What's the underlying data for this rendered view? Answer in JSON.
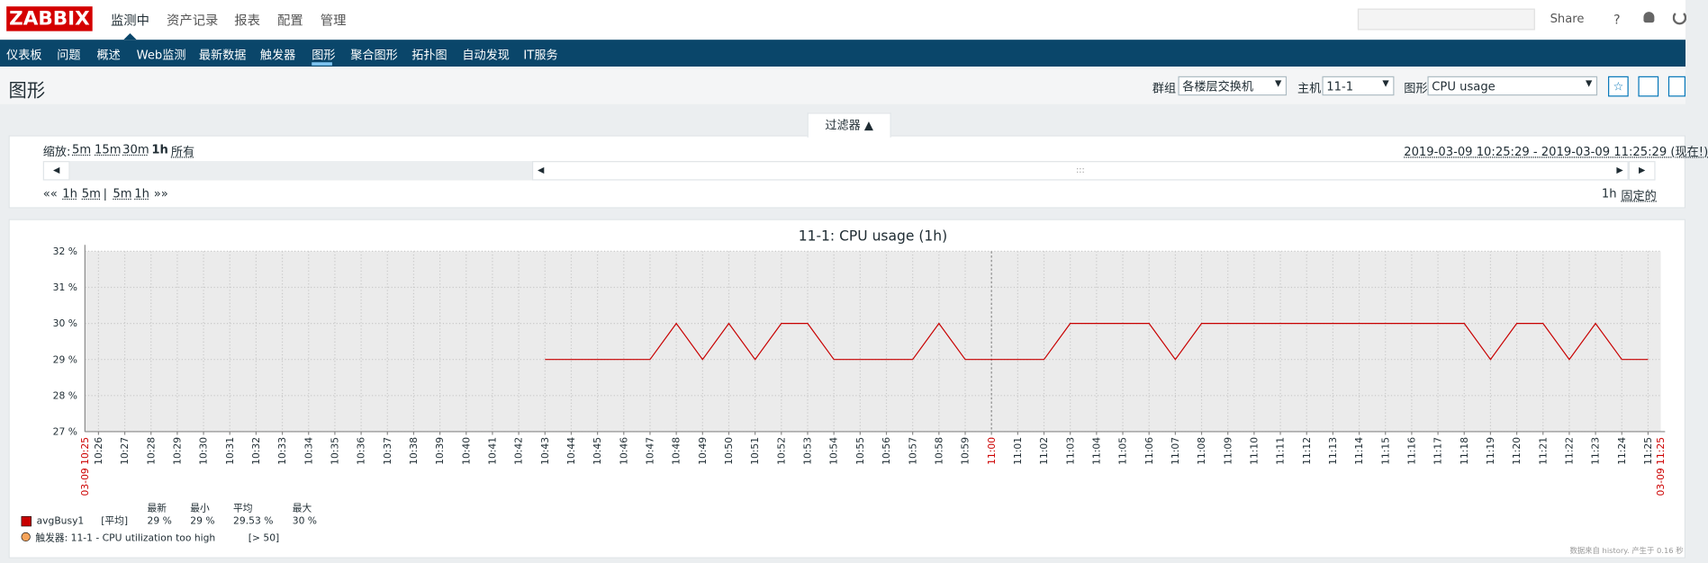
{
  "header": {
    "logo": "ZABBIX",
    "menu": [
      "监测中",
      "资产记录",
      "报表",
      "配置",
      "管理"
    ],
    "share": "Share",
    "help": "?"
  },
  "subnav": [
    "仪表板",
    "问题",
    "概述",
    "Web监测",
    "最新数据",
    "触发器",
    "图形",
    "聚合图形",
    "拓扑图",
    "自动发现",
    "IT服务"
  ],
  "page": {
    "title": "图形",
    "filters": [
      {
        "label": "群组",
        "value": "各楼层交换机"
      },
      {
        "label": "主机",
        "value": "11-1"
      },
      {
        "label": "图形",
        "value": "CPU usage"
      }
    ]
  },
  "filter": {
    "tab": "过滤器 ▲",
    "zoom_label": "缩放:",
    "zoom": [
      "5m",
      "15m",
      "30m",
      "1h",
      "所有"
    ],
    "range": "2019-03-09 10:25:29 - 2019-03-09 11:25:29 (现在!)",
    "nav": [
      "««",
      "1h",
      "5m",
      "|",
      "5m",
      "1h",
      "»»"
    ],
    "period": "1h",
    "fixed": "固定的"
  },
  "chart_data": {
    "type": "line",
    "title": "11-1: CPU usage (1h)",
    "x": [
      "10:43",
      "10:44",
      "10:45",
      "10:46",
      "10:47",
      "10:48",
      "10:49",
      "10:50",
      "10:51",
      "10:52",
      "10:53",
      "10:54",
      "10:55",
      "10:56",
      "10:57",
      "10:58",
      "10:59",
      "11:00",
      "11:01",
      "11:02",
      "11:03",
      "11:04",
      "11:05",
      "11:06",
      "11:07",
      "11:08",
      "11:09",
      "11:10",
      "11:11",
      "11:12",
      "11:13",
      "11:14",
      "11:15",
      "11:16",
      "11:17",
      "11:18",
      "11:19",
      "11:20",
      "11:21",
      "11:22",
      "11:23",
      "11:24",
      "11:25"
    ],
    "series": [
      {
        "name": "avgBusy1",
        "color": "#c80000",
        "values": [
          29,
          29,
          29,
          29,
          29,
          30,
          29,
          30,
          29,
          30,
          30,
          29,
          29,
          29,
          29,
          30,
          29,
          29,
          29,
          29,
          30,
          30,
          30,
          30,
          29,
          30,
          30,
          30,
          30,
          30,
          30,
          30,
          30,
          30,
          30,
          30,
          29,
          30,
          30,
          29,
          30,
          29,
          29
        ]
      }
    ],
    "xlim": [
      "10:25:29",
      "11:25:29"
    ],
    "xticks": [
      "10:26",
      "10:27",
      "10:28",
      "10:29",
      "10:30",
      "10:31",
      "10:32",
      "10:33",
      "10:34",
      "10:35",
      "10:36",
      "10:37",
      "10:38",
      "10:39",
      "10:40",
      "10:41",
      "10:42",
      "10:43",
      "10:44",
      "10:45",
      "10:46",
      "10:47",
      "10:48",
      "10:49",
      "10:50",
      "10:51",
      "10:52",
      "10:53",
      "10:54",
      "10:55",
      "10:56",
      "10:57",
      "10:58",
      "10:59",
      "11:00",
      "11:01",
      "11:02",
      "11:03",
      "11:04",
      "11:05",
      "11:06",
      "11:07",
      "11:08",
      "11:09",
      "11:10",
      "11:11",
      "11:12",
      "11:13",
      "11:14",
      "11:15",
      "11:16",
      "11:17",
      "11:18",
      "11:19",
      "11:20",
      "11:21",
      "11:22",
      "11:23",
      "11:24",
      "11:25"
    ],
    "x_edge_labels": [
      "03-09 10:25",
      "03-09 11:25"
    ],
    "xtick_highlight": [
      34
    ],
    "highlight_color": "#cc0000",
    "ylim": [
      27,
      32
    ],
    "yticks": [
      {
        "value": 27,
        "label": "27 %"
      },
      {
        "value": 28,
        "label": "28 %"
      },
      {
        "value": 29,
        "label": "29 %"
      },
      {
        "value": 30,
        "label": "30 %"
      },
      {
        "value": 31,
        "label": "31 %"
      },
      {
        "value": 32,
        "label": "32 %"
      }
    ],
    "grid": true,
    "legend": {
      "columns": [
        "最新",
        "最小",
        "平均",
        "最大"
      ],
      "function": "[平均]",
      "stats": [
        "29 %",
        "29 %",
        "29.53 %",
        "30 %"
      ]
    },
    "trigger": {
      "label": "触发器: 11-1 - CPU utilization too high",
      "threshold": "[> 50]",
      "color": "#f5a35a"
    },
    "footer": "数据来自 history. 产生于 0.16 秒"
  }
}
